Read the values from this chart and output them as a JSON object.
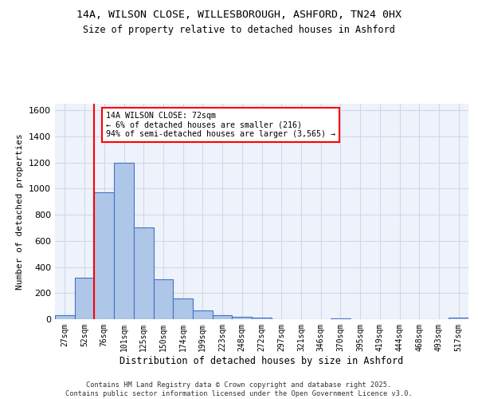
{
  "title1": "14A, WILSON CLOSE, WILLESBOROUGH, ASHFORD, TN24 0HX",
  "title2": "Size of property relative to detached houses in Ashford",
  "xlabel": "Distribution of detached houses by size in Ashford",
  "ylabel": "Number of detached properties",
  "footer": "Contains HM Land Registry data © Crown copyright and database right 2025.\nContains public sector information licensed under the Open Government Licence v3.0.",
  "bin_labels": [
    "27sqm",
    "52sqm",
    "76sqm",
    "101sqm",
    "125sqm",
    "150sqm",
    "174sqm",
    "199sqm",
    "223sqm",
    "248sqm",
    "272sqm",
    "297sqm",
    "321sqm",
    "346sqm",
    "370sqm",
    "395sqm",
    "419sqm",
    "444sqm",
    "468sqm",
    "493sqm",
    "517sqm"
  ],
  "bar_values": [
    28,
    320,
    970,
    1200,
    700,
    305,
    160,
    70,
    30,
    20,
    15,
    0,
    0,
    0,
    8,
    0,
    0,
    0,
    0,
    0,
    12
  ],
  "bar_color": "#aec6e8",
  "bar_edge_color": "#4472c4",
  "grid_color": "#d0d8e8",
  "background_color": "#eef2fa",
  "vline_color": "red",
  "vline_x": 2.0,
  "annotation_title": "14A WILSON CLOSE: 72sqm",
  "annotation_line1": "← 6% of detached houses are smaller (216)",
  "annotation_line2": "94% of semi-detached houses are larger (3,565) →",
  "annotation_box_color": "white",
  "annotation_box_edgecolor": "red",
  "ylim": [
    0,
    1650
  ],
  "yticks": [
    0,
    200,
    400,
    600,
    800,
    1000,
    1200,
    1400,
    1600
  ],
  "title1_fontsize": 9.5,
  "title2_fontsize": 8.5,
  "ylabel_fontsize": 8,
  "xlabel_fontsize": 8.5,
  "tick_fontsize": 7,
  "footer_fontsize": 6.2
}
